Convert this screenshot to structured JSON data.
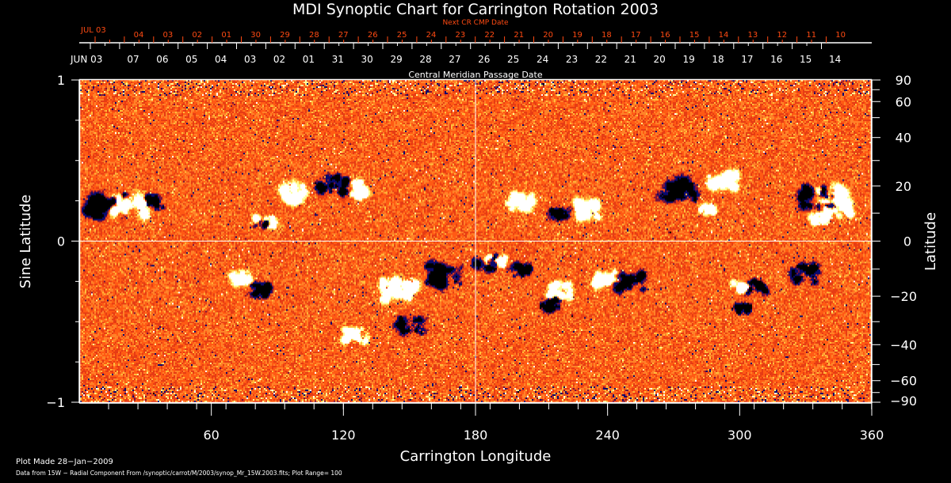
{
  "chart_data": {
    "type": "heatmap",
    "title": "MDI Synoptic Chart for Carrington Rotation 2003",
    "xlabel": "Carrington Longitude",
    "ylabel_left": "Sine Latitude",
    "ylabel_right": "Latitude",
    "xlim": [
      0,
      360
    ],
    "ylim": [
      -1,
      1
    ],
    "x_ticks": [
      60,
      120,
      180,
      240,
      300,
      360
    ],
    "x_minor_step": 13.33,
    "y_left_ticks": [
      {
        "value": 1,
        "label": "1"
      },
      {
        "value": 0,
        "label": "0"
      },
      {
        "value": -1,
        "label": "−1"
      }
    ],
    "y_left_minor": [
      0.75,
      0.5,
      0.25,
      -0.25,
      -0.5,
      -0.75
    ],
    "y_right_ticks": [
      {
        "lat": 90,
        "label": "90"
      },
      {
        "lat": 60,
        "label": "60"
      },
      {
        "lat": 40,
        "label": "40"
      },
      {
        "lat": 20,
        "label": "20"
      },
      {
        "lat": 0,
        "label": "0"
      },
      {
        "lat": -20,
        "label": "−20"
      },
      {
        "lat": -40,
        "label": "−40"
      },
      {
        "lat": -60,
        "label": "−60"
      },
      {
        "lat": -90,
        "label": "−90"
      }
    ],
    "y_right_minor": [
      70,
      50,
      30,
      10,
      -10,
      -30,
      -50,
      -70
    ],
    "top_axis": {
      "title_cmp": "Central Meridian Passage Date",
      "title_next": "Next CR CMP Date",
      "cmp_start_label": "JUN 03",
      "next_start_label": "JUL 03",
      "cmp_dates": [
        "07",
        "06",
        "05",
        "04",
        "03",
        "02",
        "01",
        "31",
        "30",
        "29",
        "28",
        "27",
        "26",
        "25",
        "24",
        "23",
        "22",
        "21",
        "20",
        "19",
        "18",
        "17",
        "16",
        "15",
        "14"
      ],
      "next_dates": [
        "04",
        "03",
        "02",
        "01",
        "30",
        "29",
        "28",
        "27",
        "26",
        "25",
        "24",
        "23",
        "22",
        "21",
        "20",
        "19",
        "18",
        "17",
        "16",
        "15",
        "14",
        "13",
        "12",
        "11",
        "10"
      ]
    },
    "colormap": {
      "negative": "#000080",
      "strong_negative": "#000000",
      "background": "#ff5a14",
      "positive": "#ffff99",
      "strong_positive": "#ffffff"
    },
    "plot_range": 100,
    "central_meridian_line": 180,
    "equator_line": 0,
    "active_regions": [
      {
        "lon": 12,
        "sinlat": 0.22,
        "polarity": "neg",
        "size": 1.2
      },
      {
        "lon": 22,
        "sinlat": 0.22,
        "polarity": "pos",
        "size": 1.0
      },
      {
        "lon": 33,
        "sinlat": 0.25,
        "polarity": "neg",
        "size": 0.6
      },
      {
        "lon": 84,
        "sinlat": 0.12,
        "polarity": "pos",
        "size": 0.6
      },
      {
        "lon": 82,
        "sinlat": 0.1,
        "polarity": "neg",
        "size": 0.4
      },
      {
        "lon": 95,
        "sinlat": 0.3,
        "polarity": "pos",
        "size": 0.9
      },
      {
        "lon": 115,
        "sinlat": 0.35,
        "polarity": "neg",
        "size": 0.9
      },
      {
        "lon": 125,
        "sinlat": 0.33,
        "polarity": "pos",
        "size": 0.7
      },
      {
        "lon": 73,
        "sinlat": -0.22,
        "polarity": "pos",
        "size": 0.6
      },
      {
        "lon": 82,
        "sinlat": -0.3,
        "polarity": "neg",
        "size": 0.6
      },
      {
        "lon": 145,
        "sinlat": -0.3,
        "polarity": "pos",
        "size": 1.1
      },
      {
        "lon": 165,
        "sinlat": -0.2,
        "polarity": "neg",
        "size": 1.0
      },
      {
        "lon": 150,
        "sinlat": -0.52,
        "polarity": "neg",
        "size": 0.8
      },
      {
        "lon": 125,
        "sinlat": -0.58,
        "polarity": "pos",
        "size": 0.7
      },
      {
        "lon": 184,
        "sinlat": -0.13,
        "polarity": "neg",
        "size": 0.7
      },
      {
        "lon": 189,
        "sinlat": -0.12,
        "polarity": "pos",
        "size": 0.6
      },
      {
        "lon": 200,
        "sinlat": -0.18,
        "polarity": "neg",
        "size": 0.6
      },
      {
        "lon": 218,
        "sinlat": -0.3,
        "polarity": "pos",
        "size": 0.7
      },
      {
        "lon": 215,
        "sinlat": -0.38,
        "polarity": "neg",
        "size": 0.7
      },
      {
        "lon": 250,
        "sinlat": -0.25,
        "polarity": "neg",
        "size": 0.9
      },
      {
        "lon": 240,
        "sinlat": -0.22,
        "polarity": "pos",
        "size": 0.7
      },
      {
        "lon": 200,
        "sinlat": 0.25,
        "polarity": "pos",
        "size": 0.8
      },
      {
        "lon": 218,
        "sinlat": 0.18,
        "polarity": "neg",
        "size": 0.6
      },
      {
        "lon": 230,
        "sinlat": 0.2,
        "polarity": "pos",
        "size": 0.8
      },
      {
        "lon": 272,
        "sinlat": 0.32,
        "polarity": "neg",
        "size": 1.0
      },
      {
        "lon": 292,
        "sinlat": 0.38,
        "polarity": "pos",
        "size": 0.8
      },
      {
        "lon": 285,
        "sinlat": 0.2,
        "polarity": "pos",
        "size": 0.5
      },
      {
        "lon": 335,
        "sinlat": 0.28,
        "polarity": "neg",
        "size": 1.0
      },
      {
        "lon": 342,
        "sinlat": 0.3,
        "polarity": "pos",
        "size": 0.8
      },
      {
        "lon": 336,
        "sinlat": 0.15,
        "polarity": "pos",
        "size": 0.5
      },
      {
        "lon": 345,
        "sinlat": 0.2,
        "polarity": "pos",
        "size": 0.8
      },
      {
        "lon": 307,
        "sinlat": -0.28,
        "polarity": "neg",
        "size": 0.6
      },
      {
        "lon": 300,
        "sinlat": -0.28,
        "polarity": "pos",
        "size": 0.5
      },
      {
        "lon": 302,
        "sinlat": -0.42,
        "polarity": "neg",
        "size": 0.5
      },
      {
        "lon": 330,
        "sinlat": -0.2,
        "polarity": "neg",
        "size": 0.8
      }
    ]
  },
  "footer": {
    "plot_made": "Plot Made 28−Jan−2009",
    "data_source": "Data from 15W − Radial Component From /synoptic/carrot/M/2003/synop_Mr_15W.2003.fits; Plot Range=  100"
  }
}
